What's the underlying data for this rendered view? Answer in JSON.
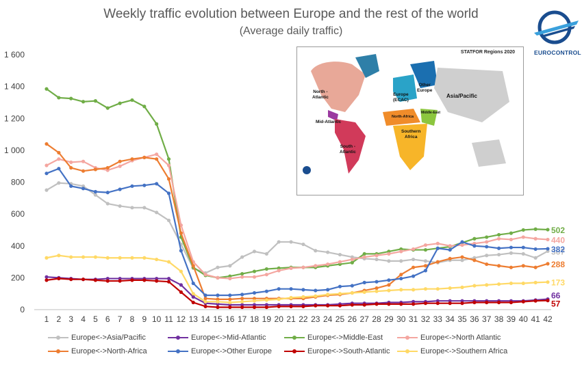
{
  "title": "Weekly traffic evolution between Europe and the rest of the world",
  "subtitle": "(Average daily traffic)",
  "logo": {
    "text": "EUROCONTROL"
  },
  "map": {
    "title": "STATFOR Regions 2020",
    "regions": [
      "North -\nAtlantic",
      "Mid-Atlantic",
      "South -\nAtlantic",
      "Europe\n(ECAC)",
      "Other\nEurope",
      "Asia/Pacific",
      "North-Africa",
      "Middle-East",
      "Southern\nAfrica"
    ]
  },
  "chart_data": {
    "type": "line",
    "title": "Weekly traffic evolution between Europe and the rest of the world",
    "subtitle": "(Average daily traffic)",
    "xlabel": "",
    "ylabel": "",
    "x": [
      1,
      2,
      3,
      4,
      5,
      6,
      7,
      8,
      9,
      10,
      11,
      12,
      13,
      14,
      15,
      16,
      17,
      18,
      19,
      20,
      21,
      22,
      23,
      24,
      25,
      26,
      27,
      28,
      29,
      30,
      31,
      32,
      33,
      34,
      35,
      36,
      37,
      38,
      39,
      40,
      41,
      42
    ],
    "ylim": [
      0,
      1600
    ],
    "yticks": [
      "0",
      "200",
      "400",
      "600",
      "800",
      "1 000",
      "1 200",
      "1 400",
      "1 600"
    ],
    "grid": false,
    "legend_position": "bottom",
    "series": [
      {
        "name": "Europe<->Asia/Pacific",
        "color": "#c0c0c0",
        "end_label": "367",
        "values": [
          750,
          795,
          790,
          775,
          720,
          665,
          650,
          640,
          640,
          610,
          560,
          410,
          260,
          230,
          265,
          275,
          330,
          365,
          350,
          425,
          425,
          410,
          370,
          360,
          345,
          330,
          320,
          315,
          305,
          305,
          315,
          305,
          295,
          310,
          310,
          325,
          340,
          345,
          355,
          350,
          325,
          367
        ]
      },
      {
        "name": "Europe<->Mid-Atlantic",
        "color": "#7030a0",
        "end_label": "66",
        "values": [
          205,
          200,
          195,
          190,
          190,
          195,
          195,
          195,
          195,
          195,
          195,
          155,
          80,
          40,
          35,
          30,
          30,
          30,
          30,
          30,
          30,
          30,
          30,
          30,
          35,
          40,
          40,
          40,
          45,
          45,
          50,
          50,
          55,
          55,
          55,
          55,
          55,
          55,
          55,
          55,
          60,
          66
        ]
      },
      {
        "name": "Europe<->Middle-East",
        "color": "#70ad47",
        "end_label": "502",
        "values": [
          1385,
          1330,
          1325,
          1305,
          1310,
          1265,
          1295,
          1315,
          1275,
          1165,
          945,
          455,
          265,
          215,
          200,
          210,
          225,
          240,
          255,
          260,
          265,
          265,
          265,
          275,
          285,
          295,
          350,
          350,
          365,
          380,
          375,
          375,
          385,
          395,
          420,
          445,
          455,
          470,
          480,
          500,
          505,
          502
        ]
      },
      {
        "name": "Europe<->North Atlantic",
        "color": "#f4a6a0",
        "end_label": "440",
        "values": [
          905,
          945,
          925,
          930,
          890,
          875,
          900,
          935,
          955,
          975,
          905,
          530,
          300,
          220,
          200,
          195,
          205,
          205,
          220,
          245,
          260,
          265,
          275,
          285,
          300,
          315,
          330,
          340,
          350,
          365,
          380,
          405,
          415,
          400,
          405,
          415,
          425,
          445,
          440,
          455,
          445,
          440
        ]
      },
      {
        "name": "Europe<->North-Africa",
        "color": "#ed7d31",
        "end_label": "288",
        "values": [
          1040,
          985,
          890,
          870,
          880,
          890,
          930,
          945,
          955,
          945,
          820,
          480,
          275,
          70,
          65,
          65,
          70,
          70,
          70,
          70,
          70,
          70,
          80,
          90,
          95,
          105,
          120,
          135,
          155,
          220,
          265,
          275,
          300,
          320,
          330,
          310,
          285,
          275,
          265,
          275,
          265,
          288
        ]
      },
      {
        "name": "Europe<->Other Europe",
        "color": "#4472c4",
        "end_label": "382",
        "values": [
          855,
          885,
          775,
          760,
          740,
          735,
          755,
          775,
          780,
          790,
          730,
          370,
          165,
          90,
          90,
          90,
          95,
          105,
          115,
          130,
          130,
          125,
          120,
          125,
          145,
          150,
          170,
          175,
          185,
          195,
          210,
          245,
          385,
          375,
          425,
          400,
          395,
          385,
          390,
          390,
          380,
          382
        ]
      },
      {
        "name": "Europe<->South-Atlantic",
        "color": "#c00000",
        "end_label": "57",
        "values": [
          185,
          195,
          190,
          190,
          185,
          180,
          180,
          185,
          185,
          180,
          175,
          110,
          45,
          20,
          15,
          15,
          15,
          15,
          15,
          20,
          20,
          20,
          25,
          25,
          25,
          30,
          30,
          35,
          35,
          35,
          35,
          40,
          40,
          40,
          40,
          45,
          45,
          45,
          45,
          50,
          55,
          57
        ]
      },
      {
        "name": "Europe<->Southern Africa",
        "color": "#ffd966",
        "end_label": "173",
        "values": [
          325,
          340,
          330,
          330,
          330,
          325,
          325,
          325,
          325,
          315,
          300,
          240,
          100,
          50,
          50,
          45,
          50,
          55,
          60,
          65,
          75,
          80,
          85,
          95,
          100,
          105,
          110,
          115,
          120,
          125,
          125,
          130,
          130,
          135,
          140,
          150,
          155,
          160,
          165,
          165,
          170,
          173
        ]
      }
    ]
  }
}
